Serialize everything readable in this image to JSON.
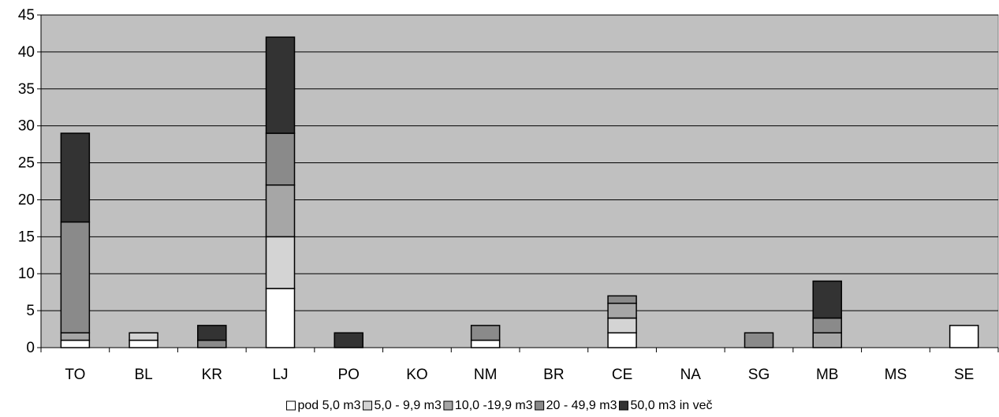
{
  "chart_data": {
    "type": "bar",
    "stacked": true,
    "title": "",
    "xlabel": "",
    "ylabel": "",
    "categories": [
      "TO",
      "BL",
      "KR",
      "LJ",
      "PO",
      "KO",
      "NM",
      "BR",
      "CE",
      "NA",
      "SG",
      "MB",
      "MS",
      "SE"
    ],
    "ylim": [
      0,
      45
    ],
    "yticks": [
      0,
      5,
      10,
      15,
      20,
      25,
      30,
      35,
      40,
      45
    ],
    "grid": true,
    "legend_position": "bottom",
    "plot_background": "#c0c0c0",
    "series": [
      {
        "name": "pod 5,0 m3",
        "color": "#ffffff",
        "values": [
          1,
          1,
          0,
          8,
          0,
          0,
          1,
          0,
          2,
          0,
          0,
          0,
          0,
          3
        ]
      },
      {
        "name": "5,0 - 9,9 m3",
        "color": "#d4d4d4",
        "values": [
          0,
          1,
          0,
          7,
          0,
          0,
          0,
          0,
          2,
          0,
          0,
          0,
          0,
          0
        ]
      },
      {
        "name": "10,0 -19,9 m3",
        "color": "#a6a6a6",
        "values": [
          1,
          0,
          0,
          7,
          0,
          0,
          0,
          0,
          2,
          0,
          0,
          2,
          0,
          0
        ]
      },
      {
        "name": "20 - 49,9 m3",
        "color": "#8a8a8a",
        "values": [
          15,
          0,
          1,
          7,
          0,
          0,
          2,
          0,
          1,
          0,
          2,
          2,
          0,
          0
        ]
      },
      {
        "name": "50,0 m3 in več",
        "color": "#333333",
        "values": [
          12,
          0,
          2,
          13,
          2,
          0,
          0,
          0,
          0,
          0,
          0,
          5,
          0,
          0
        ]
      }
    ]
  }
}
